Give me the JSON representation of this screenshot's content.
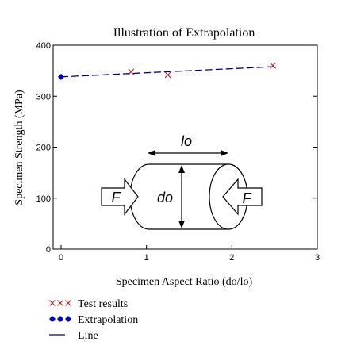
{
  "chart_data": {
    "type": "scatter",
    "title": "Illustration of Extrapolation",
    "xlabel": "Specimen Aspect Ratio (do/lo)",
    "ylabel": "Specimen Strength (MPa)",
    "xlim": [
      0,
      3
    ],
    "ylim": [
      0,
      400
    ],
    "x_ticks": [
      0,
      1,
      2,
      3
    ],
    "y_ticks": [
      0,
      100,
      200,
      300,
      400
    ],
    "grid": false,
    "legend_position": "bottom-left",
    "series": [
      {
        "name": "Test results",
        "marker": "x",
        "color": "#b03030",
        "x": [
          0.82,
          1.25,
          2.48
        ],
        "y": [
          348,
          342,
          360
        ]
      },
      {
        "name": "Extrapolation",
        "marker": "diamond",
        "color": "#0000cc",
        "x": [
          0
        ],
        "y": [
          338
        ]
      },
      {
        "name": "Line",
        "style": "dashed",
        "color": "#000080",
        "x": [
          0,
          2.5
        ],
        "y": [
          338,
          358
        ]
      }
    ],
    "annotation": {
      "length_label": "lo",
      "diameter_label": "do",
      "force_label": "F"
    }
  }
}
